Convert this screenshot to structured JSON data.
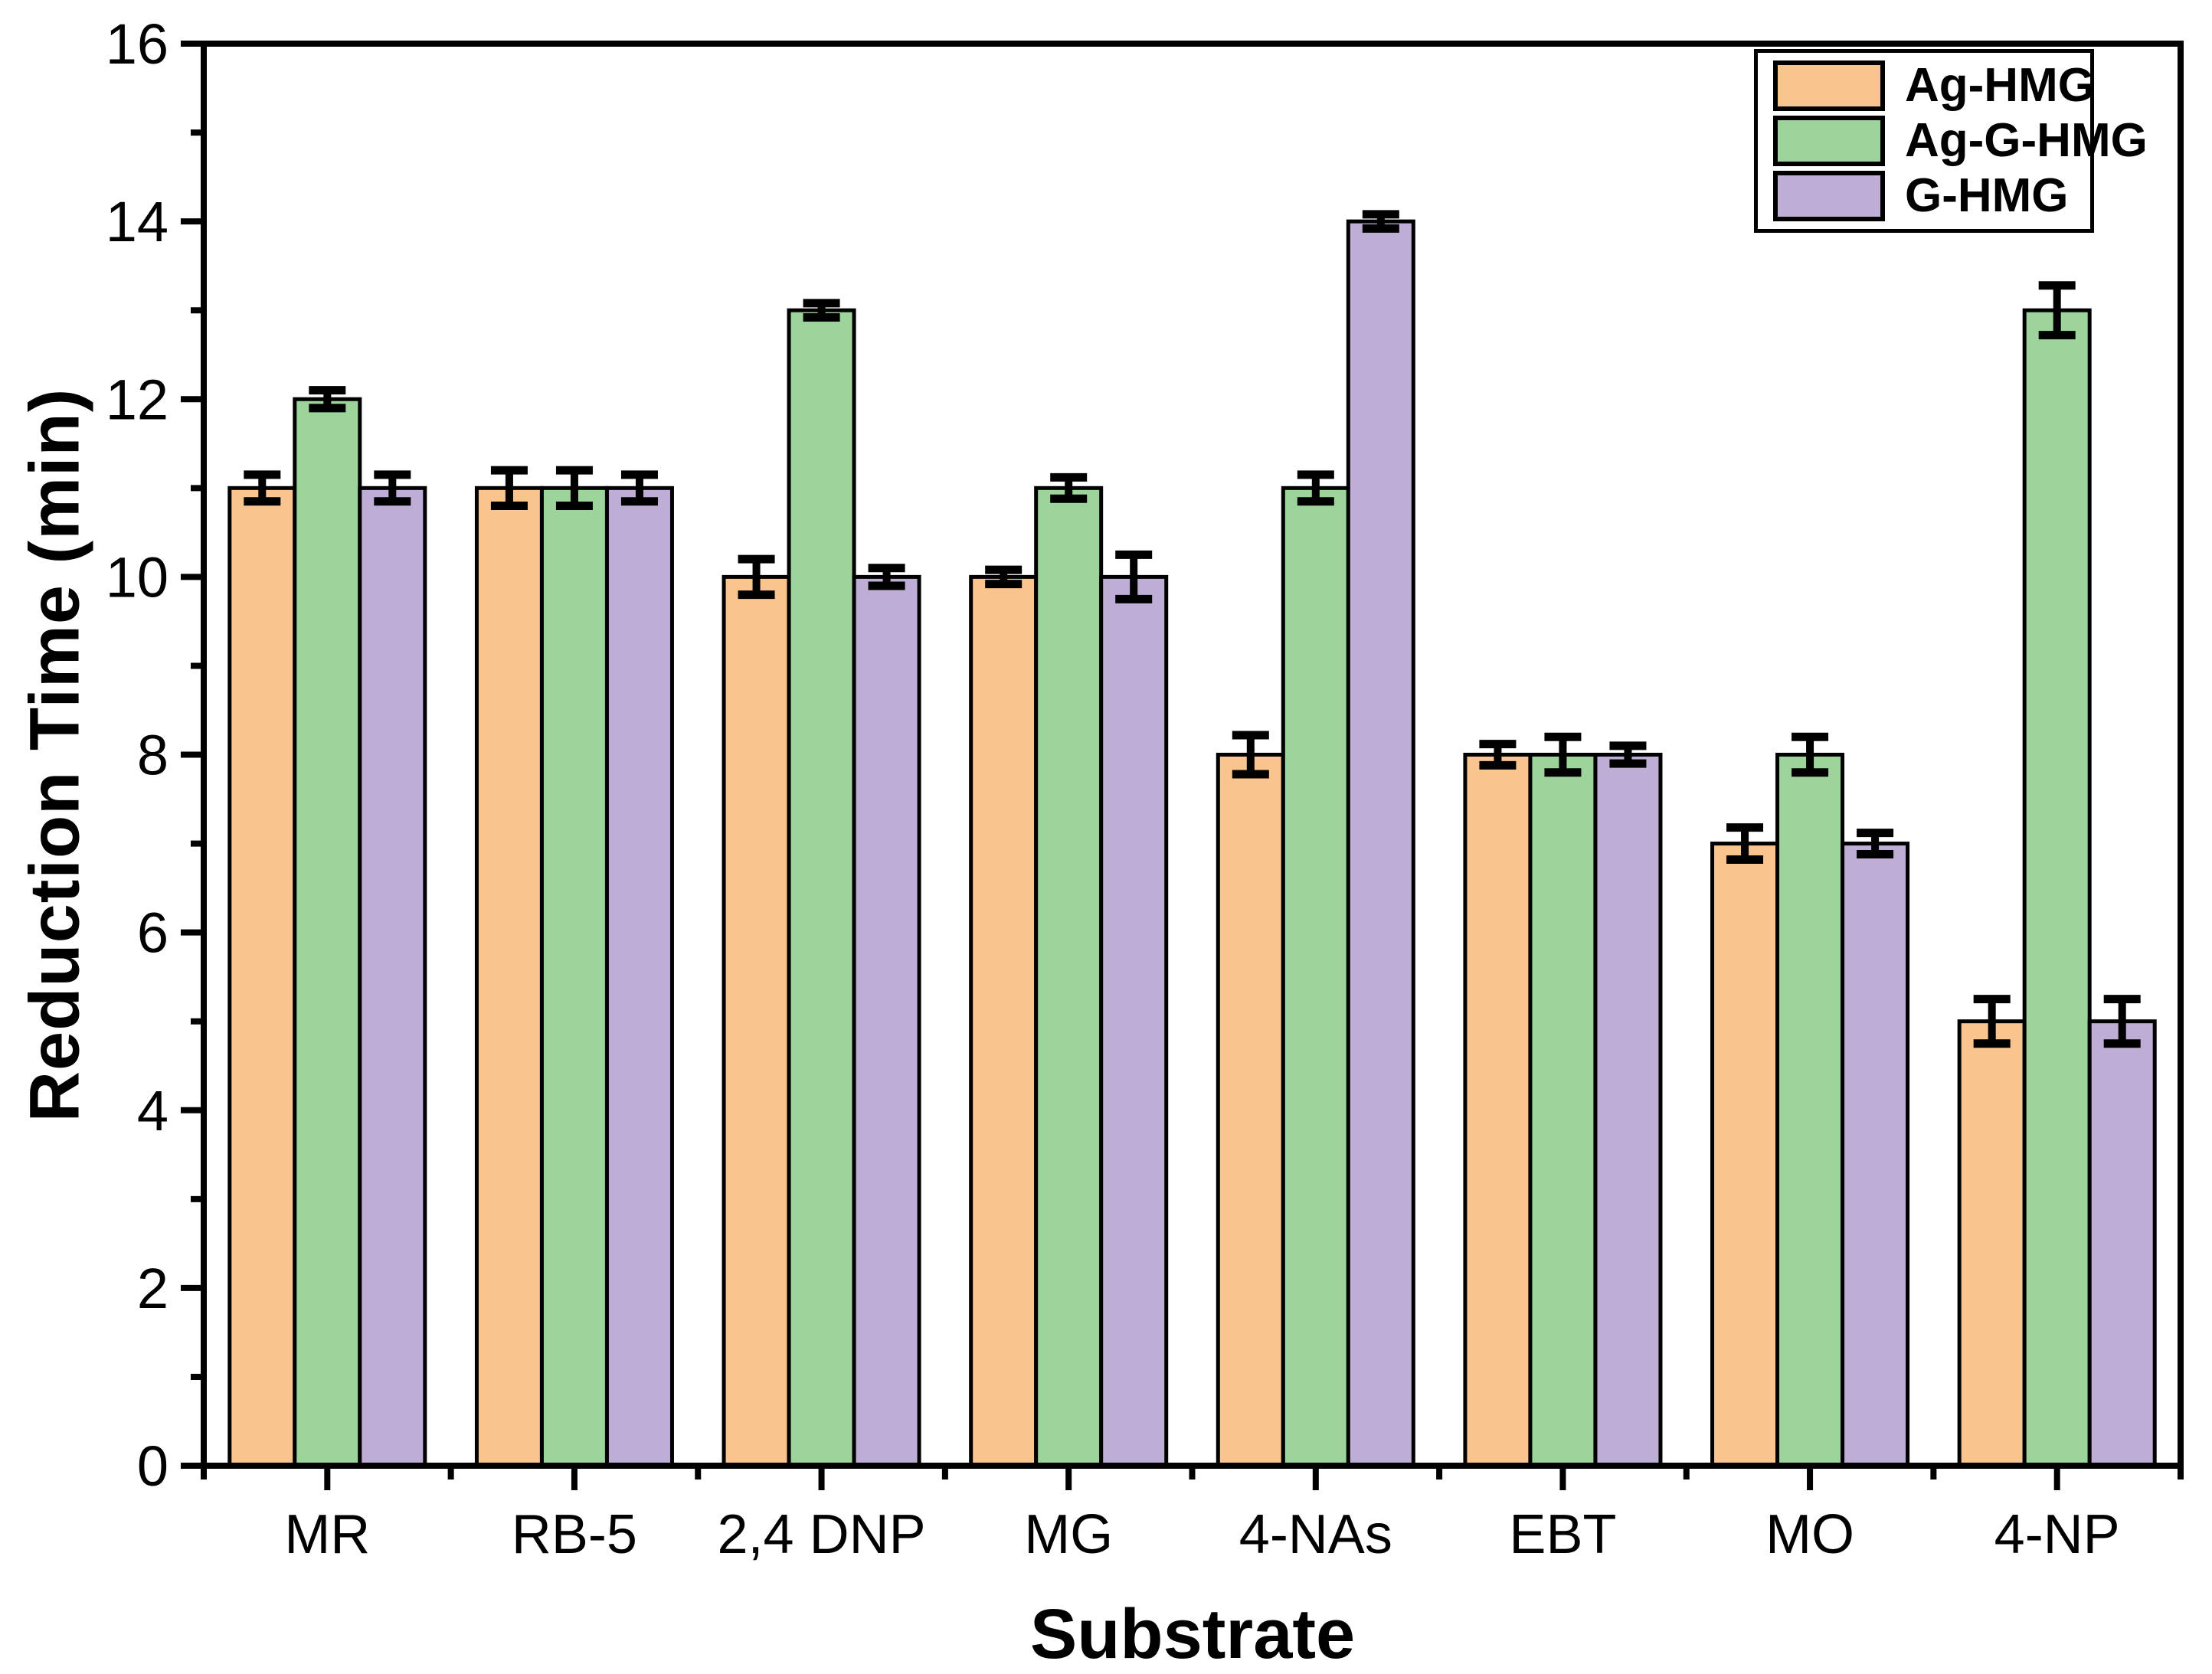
{
  "figure": {
    "background_color": "#ffffff",
    "axis_color": "#000000",
    "frame": "full-box",
    "grid": false
  },
  "chart_data": {
    "type": "bar",
    "title": "",
    "xlabel": "Substrate",
    "ylabel": "Reduction Time (min)",
    "categories": [
      "MR",
      "RB-5",
      "2,4 DNP",
      "MG",
      "4-NAs",
      "EBT",
      "MO",
      "4-NP"
    ],
    "series": [
      {
        "name": "Ag-HMG",
        "color": "#FAC48F",
        "values": [
          11,
          11,
          10,
          10,
          8,
          8,
          7,
          5
        ],
        "errors": [
          0.15,
          0.2,
          0.2,
          0.08,
          0.22,
          0.12,
          0.18,
          0.25
        ]
      },
      {
        "name": "Ag-G-HMG",
        "color": "#9CD49B",
        "values": [
          12,
          11,
          13,
          11,
          11,
          8,
          8,
          13
        ],
        "errors": [
          0.1,
          0.2,
          0.08,
          0.12,
          0.15,
          0.2,
          0.2,
          0.28
        ]
      },
      {
        "name": "G-HMG",
        "color": "#BEAED5",
        "values": [
          11,
          11,
          10,
          10,
          14,
          8,
          7,
          5
        ],
        "errors": [
          0.15,
          0.15,
          0.1,
          0.25,
          0.08,
          0.1,
          0.12,
          0.25
        ]
      }
    ],
    "ylim": [
      0,
      16
    ],
    "yticks": [
      0,
      2,
      4,
      6,
      8,
      10,
      12,
      14,
      16
    ],
    "ytick_minor_step": 1,
    "error_bars": true,
    "legend_position": "top-right",
    "legend_entries": [
      "Ag-HMG",
      "Ag-G-HMG",
      "G-HMG"
    ]
  }
}
